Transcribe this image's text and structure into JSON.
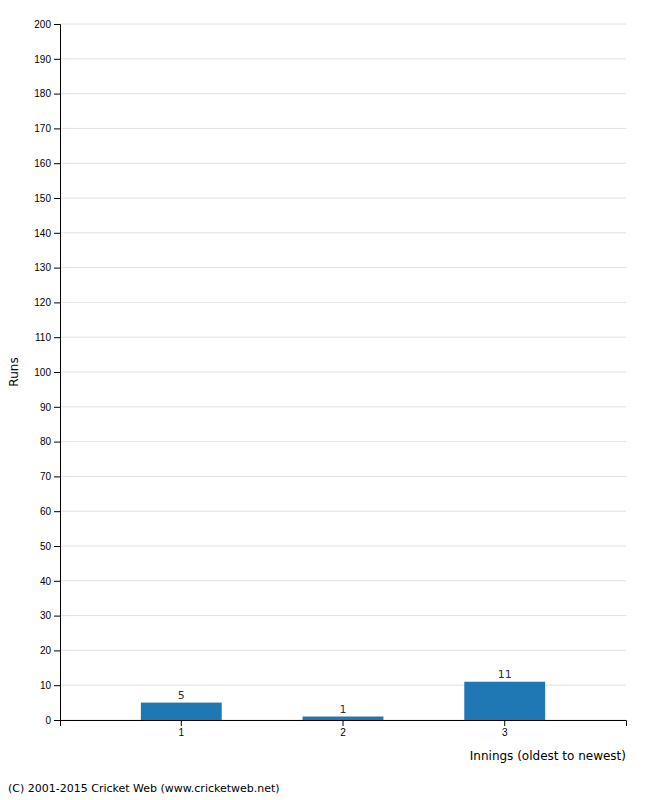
{
  "chart_data": {
    "type": "bar",
    "categories": [
      "1",
      "2",
      "3"
    ],
    "values": [
      5,
      1,
      11
    ],
    "ylabel": "Runs",
    "xlabel": "Innings (oldest to newest)",
    "annotations": [
      "(C) 2001-2015 Cricket Web (www.cricketweb.net)"
    ],
    "ylim": [
      0,
      200
    ],
    "yticks": [
      0,
      10,
      20,
      30,
      40,
      50,
      60,
      70,
      80,
      90,
      100,
      110,
      120,
      130,
      140,
      150,
      160,
      170,
      180,
      190,
      200
    ],
    "grid": true,
    "data_labels": true
  }
}
